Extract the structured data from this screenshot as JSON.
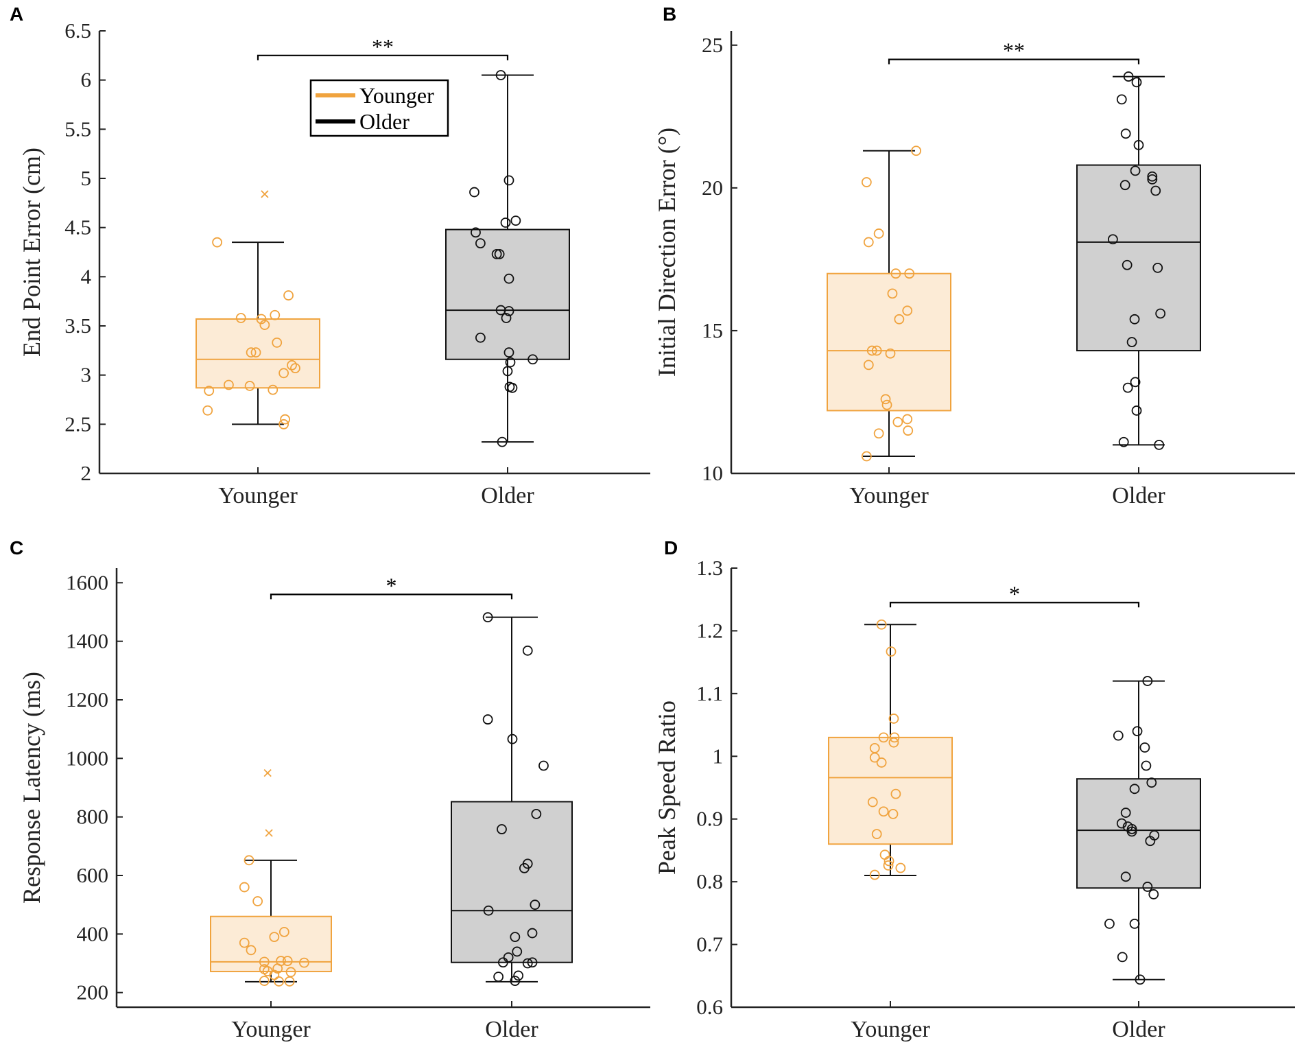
{
  "colors": {
    "younger": "#F0A33E",
    "younger_fill": "#FCEBD6",
    "older": "#111111",
    "older_fill": "#D0D0D0",
    "axis": "#222222"
  },
  "legend": {
    "entries": [
      {
        "label": "Younger",
        "color": "#F0A33E"
      },
      {
        "label": "Older",
        "color": "#000000"
      }
    ]
  },
  "chart_data": [
    {
      "panel": "A",
      "type": "box",
      "ylabel": "End Point Error (cm)",
      "ylim": [
        2,
        6.5
      ],
      "yticks": [
        2,
        2.5,
        3,
        3.5,
        4,
        4.5,
        5,
        5.5,
        6,
        6.5
      ],
      "ytick_labels": [
        "2",
        "2.5",
        "3",
        "3.5",
        "4",
        "4.5",
        "5",
        "5.5",
        "6",
        "6.5"
      ],
      "categories": [
        "Younger",
        "Older"
      ],
      "significance": "**",
      "sig_y": 6.25,
      "series": [
        {
          "name": "Younger",
          "q1": 2.87,
          "median": 3.16,
          "q3": 3.57,
          "whisker_low": 2.5,
          "whisker_high": 4.35,
          "points": [
            [
              -0.6,
              4.35
            ],
            [
              -0.25,
              3.58
            ],
            [
              0.05,
              3.57
            ],
            [
              0.1,
              3.51
            ],
            [
              0.25,
              3.61
            ],
            [
              -0.1,
              3.23
            ],
            [
              -0.03,
              3.23
            ],
            [
              0.28,
              3.33
            ],
            [
              0.45,
              3.81
            ],
            [
              0.5,
              3.1
            ],
            [
              0.55,
              3.07
            ],
            [
              0.38,
              3.02
            ],
            [
              0.22,
              2.85
            ],
            [
              -0.12,
              2.89
            ],
            [
              -0.43,
              2.9
            ],
            [
              -0.72,
              2.84
            ],
            [
              -0.74,
              2.64
            ],
            [
              0.4,
              2.55
            ],
            [
              0.38,
              2.5
            ]
          ],
          "outliers": [
            [
              0.1,
              4.84
            ]
          ]
        },
        {
          "name": "Older",
          "q1": 3.16,
          "median": 3.66,
          "q3": 4.48,
          "whisker_low": 2.32,
          "whisker_high": 6.05,
          "points": [
            [
              -0.1,
              6.05
            ],
            [
              0.02,
              4.98
            ],
            [
              -0.49,
              4.86
            ],
            [
              -0.47,
              4.45
            ],
            [
              -0.4,
              4.34
            ],
            [
              0.12,
              4.57
            ],
            [
              -0.03,
              4.55
            ],
            [
              -0.16,
              4.23
            ],
            [
              -0.12,
              4.23
            ],
            [
              0.02,
              3.98
            ],
            [
              -0.1,
              3.66
            ],
            [
              0.02,
              3.65
            ],
            [
              -0.02,
              3.58
            ],
            [
              -0.4,
              3.38
            ],
            [
              0.02,
              3.23
            ],
            [
              0.04,
              3.13
            ],
            [
              0.37,
              3.16
            ],
            [
              0.0,
              3.04
            ],
            [
              0.03,
              2.88
            ],
            [
              0.07,
              2.87
            ],
            [
              -0.08,
              2.32
            ]
          ],
          "outliers": []
        }
      ]
    },
    {
      "panel": "B",
      "type": "box",
      "ylabel": "Initial Direction Error (°)",
      "ylim": [
        10,
        25.5
      ],
      "yticks": [
        10,
        15,
        20,
        25
      ],
      "ytick_labels": [
        "10",
        "15",
        "20",
        "25"
      ],
      "categories": [
        "Younger",
        "Older"
      ],
      "significance": "**",
      "sig_y": 24.5,
      "series": [
        {
          "name": "Younger",
          "q1": 12.2,
          "median": 14.3,
          "q3": 17.0,
          "whisker_low": 10.6,
          "whisker_high": 21.3,
          "points": [
            [
              0.4,
              21.3
            ],
            [
              -0.33,
              20.2
            ],
            [
              -0.3,
              18.1
            ],
            [
              -0.15,
              18.4
            ],
            [
              0.1,
              17.0
            ],
            [
              0.3,
              17.0
            ],
            [
              0.05,
              16.3
            ],
            [
              0.27,
              15.7
            ],
            [
              0.15,
              15.4
            ],
            [
              -0.25,
              14.3
            ],
            [
              -0.18,
              14.3
            ],
            [
              0.02,
              14.2
            ],
            [
              -0.3,
              13.8
            ],
            [
              -0.05,
              12.6
            ],
            [
              -0.03,
              12.4
            ],
            [
              0.13,
              11.8
            ],
            [
              0.27,
              11.9
            ],
            [
              -0.15,
              11.4
            ],
            [
              0.28,
              11.5
            ],
            [
              -0.33,
              10.6
            ]
          ],
          "outliers": []
        },
        {
          "name": "Older",
          "q1": 14.3,
          "median": 18.1,
          "q3": 20.8,
          "whisker_low": 11.0,
          "whisker_high": 23.9,
          "points": [
            [
              -0.15,
              23.9
            ],
            [
              -0.03,
              23.7
            ],
            [
              -0.25,
              23.1
            ],
            [
              -0.19,
              21.9
            ],
            [
              0.0,
              21.5
            ],
            [
              -0.2,
              20.1
            ],
            [
              0.2,
              20.3
            ],
            [
              0.2,
              20.4
            ],
            [
              0.25,
              19.9
            ],
            [
              0.28,
              17.2
            ],
            [
              -0.05,
              20.6
            ],
            [
              -0.38,
              18.2
            ],
            [
              -0.17,
              17.3
            ],
            [
              0.32,
              15.6
            ],
            [
              -0.06,
              15.4
            ],
            [
              -0.1,
              14.6
            ],
            [
              -0.05,
              13.2
            ],
            [
              -0.16,
              13.0
            ],
            [
              -0.03,
              12.2
            ],
            [
              -0.22,
              11.1
            ],
            [
              0.3,
              11.0
            ]
          ],
          "outliers": []
        }
      ]
    },
    {
      "panel": "C",
      "type": "box",
      "ylabel": "Response Latency (ms)",
      "ylim": [
        150,
        1650
      ],
      "yticks": [
        200,
        400,
        600,
        800,
        1000,
        1200,
        1400,
        1600
      ],
      "ytick_labels": [
        "200",
        "400",
        "600",
        "800",
        "1000",
        "1200",
        "1400",
        "1600"
      ],
      "categories": [
        "Younger",
        "Older"
      ],
      "significance": "*",
      "sig_y": 1560,
      "series": [
        {
          "name": "Younger",
          "q1": 272,
          "median": 305,
          "q3": 460,
          "whisker_low": 237,
          "whisker_high": 652,
          "points": [
            [
              -0.33,
              652
            ],
            [
              -0.4,
              560
            ],
            [
              -0.2,
              512
            ],
            [
              0.2,
              407
            ],
            [
              0.05,
              390
            ],
            [
              -0.4,
              370
            ],
            [
              -0.3,
              345
            ],
            [
              0.25,
              308
            ],
            [
              -0.1,
              305
            ],
            [
              0.15,
              308
            ],
            [
              0.5,
              302
            ],
            [
              0.1,
              282
            ],
            [
              -0.1,
              280
            ],
            [
              -0.05,
              273
            ],
            [
              0.3,
              270
            ],
            [
              0.05,
              260
            ],
            [
              -0.1,
              240
            ],
            [
              0.12,
              238
            ],
            [
              0.28,
              238
            ]
          ],
          "outliers": [
            [
              -0.05,
              950
            ],
            [
              -0.03,
              745
            ]
          ]
        },
        {
          "name": "Older",
          "q1": 303,
          "median": 480,
          "q3": 852,
          "whisker_low": 237,
          "whisker_high": 1482,
          "points": [
            [
              -0.36,
              1482
            ],
            [
              0.24,
              1368
            ],
            [
              -0.36,
              1133
            ],
            [
              0.01,
              1066
            ],
            [
              0.48,
              975
            ],
            [
              0.37,
              810
            ],
            [
              -0.15,
              758
            ],
            [
              0.24,
              640
            ],
            [
              0.19,
              625
            ],
            [
              0.35,
              500
            ],
            [
              -0.35,
              480
            ],
            [
              0.05,
              390
            ],
            [
              0.31,
              403
            ],
            [
              0.08,
              340
            ],
            [
              -0.05,
              320
            ],
            [
              0.31,
              303
            ],
            [
              -0.13,
              303
            ],
            [
              0.24,
              300
            ],
            [
              -0.2,
              254
            ],
            [
              0.1,
              258
            ],
            [
              0.05,
              240
            ]
          ],
          "outliers": []
        }
      ]
    },
    {
      "panel": "D",
      "type": "box",
      "ylabel": "Peak Speed Ratio",
      "ylim": [
        0.6,
        1.3
      ],
      "yticks": [
        0.6,
        0.7,
        0.8,
        0.9,
        1,
        1.1,
        1.2,
        1.3
      ],
      "ytick_labels": [
        "0.6",
        "0.7",
        "0.8",
        "0.9",
        "1",
        "1.1",
        "1.2",
        "1.3"
      ],
      "categories": [
        "Younger",
        "Older"
      ],
      "significance": "*",
      "sig_y": 1.245,
      "series": [
        {
          "name": "Younger",
          "q1": 0.86,
          "median": 0.966,
          "q3": 1.03,
          "whisker_low": 0.81,
          "whisker_high": 1.21,
          "points": [
            [
              -0.13,
              1.21
            ],
            [
              0.01,
              1.167
            ],
            [
              0.05,
              1.06
            ],
            [
              -0.1,
              1.03
            ],
            [
              0.06,
              1.03
            ],
            [
              0.05,
              1.022
            ],
            [
              -0.23,
              1.013
            ],
            [
              -0.23,
              0.998
            ],
            [
              -0.13,
              0.99
            ],
            [
              0.08,
              0.94
            ],
            [
              -0.26,
              0.927
            ],
            [
              -0.1,
              0.912
            ],
            [
              0.04,
              0.908
            ],
            [
              -0.2,
              0.876
            ],
            [
              -0.08,
              0.843
            ],
            [
              -0.02,
              0.833
            ],
            [
              -0.03,
              0.826
            ],
            [
              0.15,
              0.822
            ],
            [
              -0.23,
              0.811
            ]
          ],
          "outliers": []
        },
        {
          "name": "Older",
          "q1": 0.79,
          "median": 0.882,
          "q3": 0.964,
          "whisker_low": 0.644,
          "whisker_high": 1.12,
          "points": [
            [
              0.13,
              1.12
            ],
            [
              -0.3,
              1.033
            ],
            [
              -0.02,
              1.04
            ],
            [
              0.09,
              1.014
            ],
            [
              0.11,
              0.985
            ],
            [
              0.19,
              0.958
            ],
            [
              -0.06,
              0.948
            ],
            [
              -0.19,
              0.91
            ],
            [
              -0.25,
              0.893
            ],
            [
              -0.16,
              0.888
            ],
            [
              -0.1,
              0.88
            ],
            [
              -0.1,
              0.884
            ],
            [
              0.23,
              0.874
            ],
            [
              0.17,
              0.865
            ],
            [
              -0.19,
              0.808
            ],
            [
              0.13,
              0.792
            ],
            [
              0.22,
              0.78
            ],
            [
              -0.43,
              0.733
            ],
            [
              -0.06,
              0.733
            ],
            [
              -0.24,
              0.68
            ],
            [
              0.02,
              0.644
            ]
          ],
          "outliers": []
        }
      ]
    }
  ]
}
